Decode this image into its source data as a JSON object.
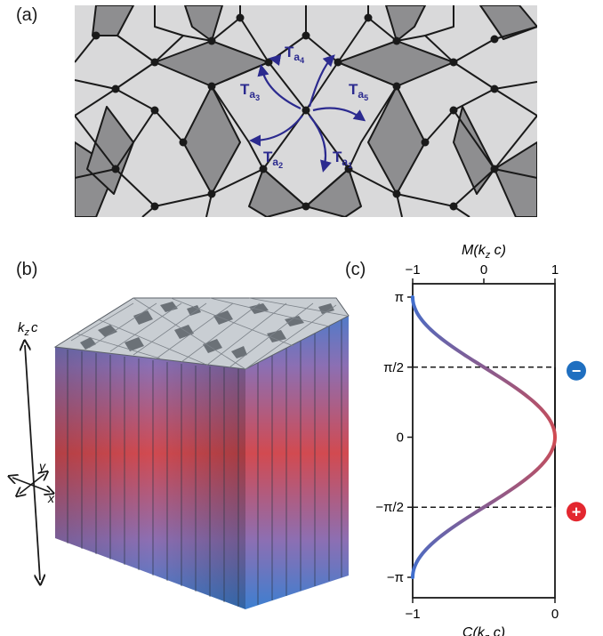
{
  "figure": {
    "panel_a": {
      "label": "(a)",
      "operators": [
        {
          "main": "T",
          "sub": "a",
          "subsub": "1"
        },
        {
          "main": "T",
          "sub": "a",
          "subsub": "2"
        },
        {
          "main": "T",
          "sub": "a",
          "subsub": "3"
        },
        {
          "main": "T",
          "sub": "a",
          "subsub": "4"
        },
        {
          "main": "T",
          "sub": "a",
          "subsub": "5"
        }
      ],
      "colors": {
        "light_tile": "#d9d9da",
        "dark_tile": "#8e8e90",
        "edge": "#1a1a1a",
        "arrow": "#2b2a8f"
      }
    },
    "panel_b": {
      "label": "(b)",
      "axis_kz": "k",
      "axis_kz_sub": "z",
      "axis_kz_c": "c",
      "axis_x": "x",
      "axis_y": "y",
      "colors": {
        "blue": "#3d7fd0",
        "red": "#d24a50",
        "top_light": "#c9ced3",
        "top_dark": "#5b6168"
      }
    },
    "panel_c": {
      "label": "(c)",
      "top_axis_label": {
        "pre": "M(k",
        "sub": "z",
        "post": " c)"
      },
      "bottom_axis_label": {
        "pre": "C(k",
        "sub": "z",
        "post": " c)"
      },
      "badge_minus": "−",
      "badge_plus": "+",
      "badge_colors": {
        "minus": "#1f6fc0",
        "plus": "#e3272f"
      }
    }
  },
  "chart_data": {
    "type": "line",
    "title": "",
    "y_label": "kz c",
    "y_ticks": [
      "π",
      "π/2",
      "0",
      "−π/2",
      "−π"
    ],
    "y_range": [
      -3.1416,
      3.1416
    ],
    "top_axis": {
      "label": "M(kz c)",
      "ticks": [
        "−1",
        "0",
        "1"
      ],
      "range": [
        -1,
        1
      ]
    },
    "bottom_axis": {
      "label": "C(kz c)",
      "ticks": [
        "−1",
        "0"
      ],
      "range": [
        -1,
        0
      ]
    },
    "series": [
      {
        "function": "cos",
        "x_axis": "top",
        "color_center": "#d24a50",
        "color_ends": "#3d6fd0"
      }
    ],
    "dashed_step": {
      "upper": 1.5708,
      "lower": -1.5708,
      "step_values": [
        -1,
        0,
        -1
      ]
    },
    "curve_samples_y": [
      -3.1416,
      -2.3562,
      -1.5708,
      -0.7854,
      0,
      0.7854,
      1.5708,
      2.3562,
      3.1416
    ],
    "curve_samples_x": [
      -1.0,
      -0.707,
      0.0,
      0.707,
      1.0,
      0.707,
      0.0,
      -0.707,
      -1.0
    ]
  }
}
